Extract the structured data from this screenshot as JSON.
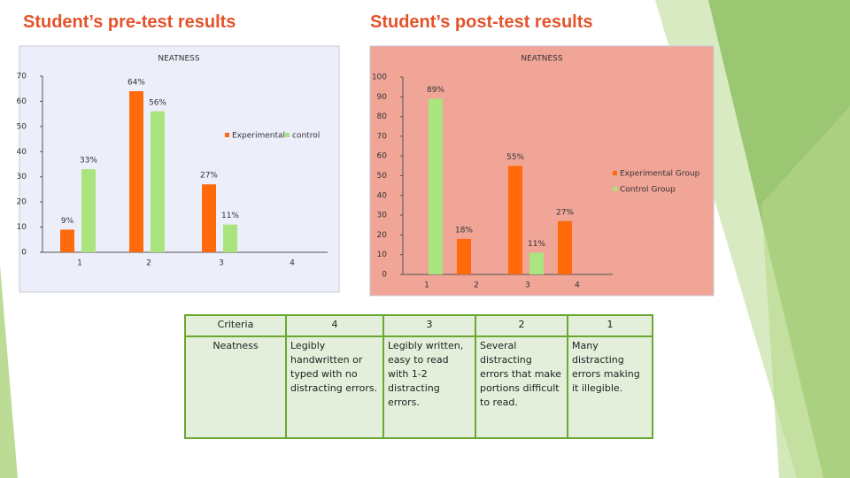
{
  "headings": {
    "left": "Student’s pre-test results",
    "right": "Student’s post-test results"
  },
  "chart_data": [
    {
      "type": "bar",
      "title": "NEATNESS",
      "categories": [
        "1",
        "2",
        "3",
        "4"
      ],
      "series": [
        {
          "name": "Experimental",
          "color": "#ff6a0d",
          "values": [
            9,
            64,
            27,
            null
          ],
          "value_labels": [
            "9%",
            "64%",
            "27%",
            null
          ]
        },
        {
          "name": "control",
          "color": "#a9e47e",
          "values": [
            33,
            56,
            11,
            null
          ],
          "value_labels": [
            "33%",
            "56%",
            "11%",
            null
          ]
        }
      ],
      "ylim": [
        0,
        70
      ],
      "yticks": [
        0,
        10,
        20,
        30,
        40,
        50,
        60,
        70
      ],
      "background": "#eceef9"
    },
    {
      "type": "bar",
      "title": "NEATNESS",
      "categories": [
        "1",
        "2",
        "3",
        "4"
      ],
      "series": [
        {
          "name": "Experimental Group",
          "color": "#ff6a0d",
          "values": [
            null,
            18,
            55,
            27
          ],
          "value_labels": [
            null,
            "18%",
            "55%",
            "27%"
          ]
        },
        {
          "name": "Control Group",
          "color": "#a9e47e",
          "values": [
            89,
            null,
            11,
            null
          ],
          "value_labels": [
            "89%",
            null,
            "11%",
            null
          ]
        }
      ],
      "ylim": [
        0,
        100
      ],
      "yticks": [
        0,
        10,
        20,
        30,
        40,
        50,
        60,
        70,
        80,
        90,
        100
      ],
      "background": "#f0a597"
    }
  ],
  "table": {
    "header": [
      "Criteria",
      "4",
      "3",
      "2",
      "1"
    ],
    "rows": [
      [
        "Neatness",
        "Legibly handwritten or typed with no distracting errors.",
        "Legibly written, easy to read with 1-2 distracting errors.",
        "Several distracting errors that make portions difficult to read.",
        "Many distracting errors making it illegible."
      ]
    ]
  }
}
